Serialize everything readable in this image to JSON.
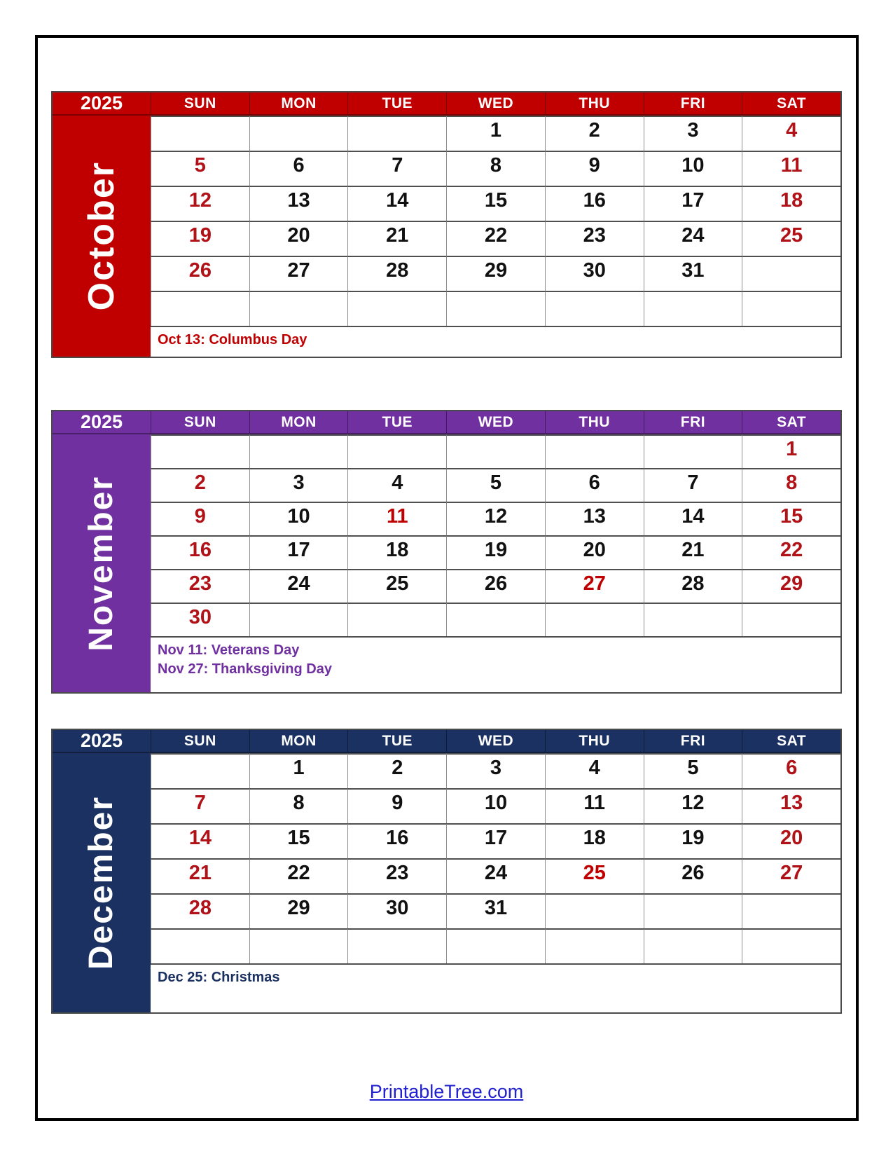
{
  "page": {
    "footer_link": "PrintableTree.com"
  },
  "year_label": "2025",
  "weekday_headers": [
    "SUN",
    "MON",
    "TUE",
    "WED",
    "THU",
    "FRI",
    "SAT"
  ],
  "colors": {
    "october_theme": "#C00000",
    "november_theme": "#7030A0",
    "december_theme": "#1A3161",
    "weekend_date": "#B11218",
    "holiday_date": "#C00000",
    "weekday_date": "#111111",
    "footer_link": "#2121CE"
  },
  "calendars": [
    {
      "id": "october",
      "month": "October",
      "year": "2025",
      "theme": "#C00000",
      "rows": [
        [
          "",
          "",
          "",
          "1",
          "2",
          "3",
          "4"
        ],
        [
          "5",
          "6",
          "7",
          "8",
          "9",
          "10",
          "11"
        ],
        [
          "12",
          "13",
          "14",
          "15",
          "16",
          "17",
          "18"
        ],
        [
          "19",
          "20",
          "21",
          "22",
          "23",
          "24",
          "25"
        ],
        [
          "26",
          "27",
          "28",
          "29",
          "30",
          "31",
          ""
        ],
        [
          "",
          "",
          "",
          "",
          "",
          "",
          ""
        ]
      ],
      "holiday_dates": [],
      "holidays": [
        "Oct 13: Columbus Day"
      ]
    },
    {
      "id": "november",
      "month": "November",
      "year": "2025",
      "theme": "#7030A0",
      "rows": [
        [
          "",
          "",
          "",
          "",
          "",
          "",
          "1"
        ],
        [
          "2",
          "3",
          "4",
          "5",
          "6",
          "7",
          "8"
        ],
        [
          "9",
          "10",
          "11",
          "12",
          "13",
          "14",
          "15"
        ],
        [
          "16",
          "17",
          "18",
          "19",
          "20",
          "21",
          "22"
        ],
        [
          "23",
          "24",
          "25",
          "26",
          "27",
          "28",
          "29"
        ],
        [
          "30",
          "",
          "",
          "",
          "",
          "",
          ""
        ]
      ],
      "holiday_dates": [
        11,
        27
      ],
      "holidays": [
        "Nov 11: Veterans Day",
        "Nov 27: Thanksgiving Day"
      ]
    },
    {
      "id": "december",
      "month": "December",
      "year": "2025",
      "theme": "#1A3161",
      "rows": [
        [
          "",
          "1",
          "2",
          "3",
          "4",
          "5",
          "6"
        ],
        [
          "7",
          "8",
          "9",
          "10",
          "11",
          "12",
          "13"
        ],
        [
          "14",
          "15",
          "16",
          "17",
          "18",
          "19",
          "20"
        ],
        [
          "21",
          "22",
          "23",
          "24",
          "25",
          "26",
          "27"
        ],
        [
          "28",
          "29",
          "30",
          "31",
          "",
          "",
          ""
        ],
        [
          "",
          "",
          "",
          "",
          "",
          "",
          ""
        ]
      ],
      "holiday_dates": [
        25
      ],
      "holidays": [
        "Dec 25: Christmas"
      ]
    }
  ]
}
